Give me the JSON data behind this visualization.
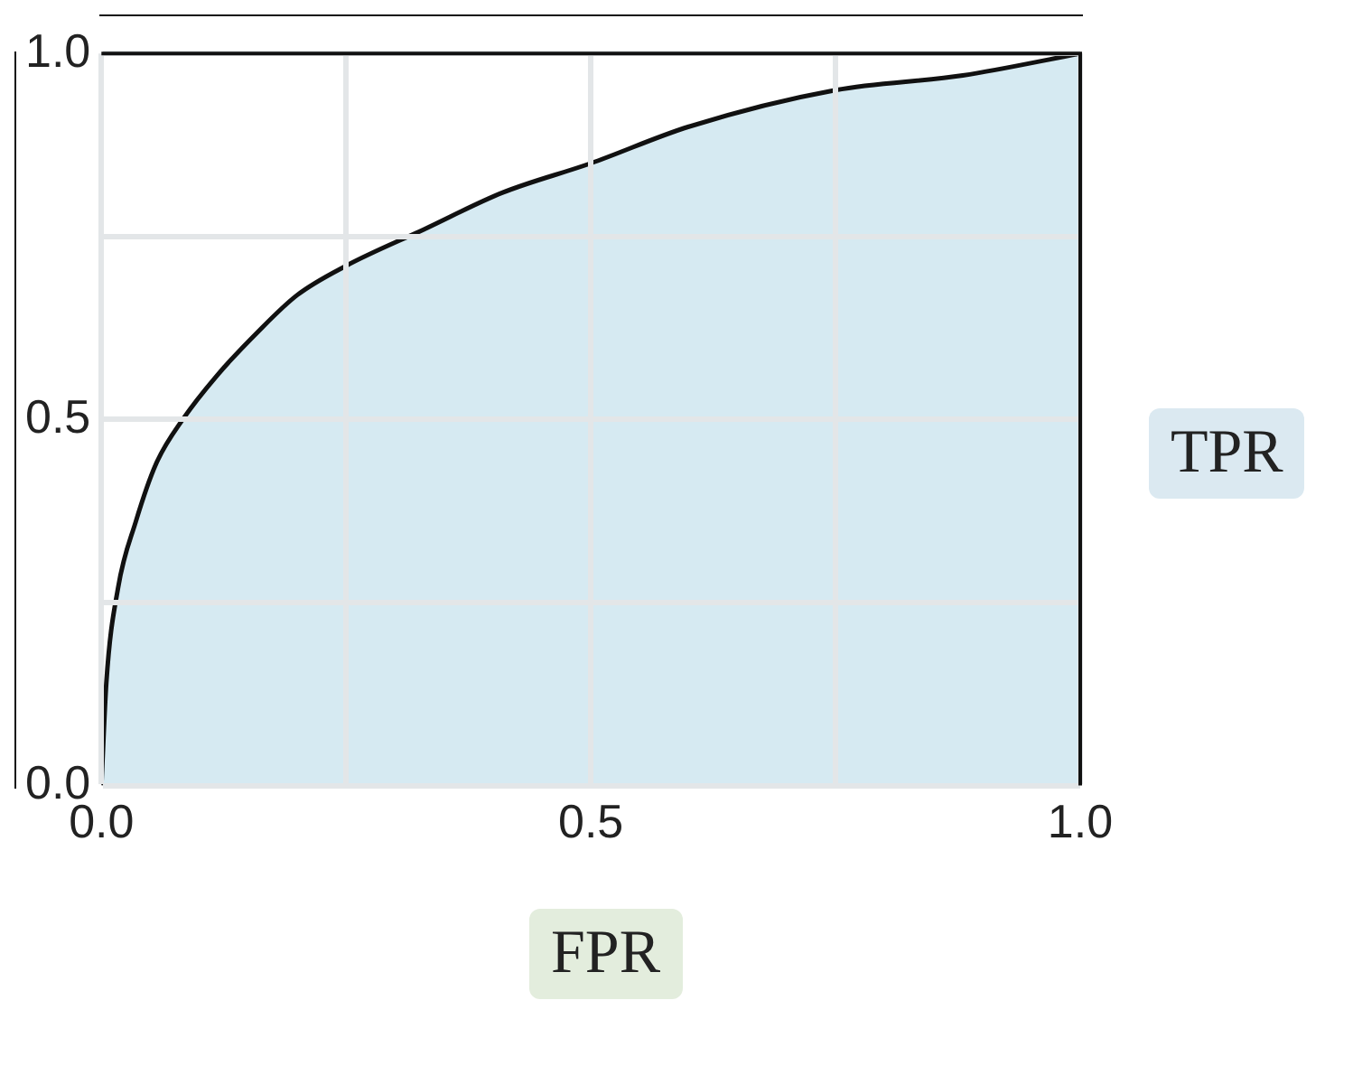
{
  "chart_data": {
    "type": "area",
    "xlabel": "FPR",
    "ylabel": "TPR",
    "x": [
      0,
      0.005,
      0.017,
      0.035,
      0.056,
      0.083,
      0.118,
      0.16,
      0.2,
      0.25,
      0.33,
      0.41,
      0.5,
      0.6,
      0.75,
      0.88,
      1
    ],
    "series": [
      {
        "color": "#d6eaf2",
        "values": [
          0,
          0.14,
          0.27,
          0.36,
          0.44,
          0.5,
          0.56,
          0.62,
          0.67,
          0.71,
          0.76,
          0.81,
          0.85,
          0.9,
          0.95,
          0.97,
          1
        ]
      }
    ],
    "xlim": [
      0,
      1
    ],
    "ylim": [
      0,
      1
    ],
    "xticks": [
      {
        "value": 0,
        "label": "0.0"
      },
      {
        "value": 0.25,
        "label": null
      },
      {
        "value": 0.5,
        "label": "0.5"
      },
      {
        "value": 0.75,
        "label": null
      },
      {
        "value": 1,
        "label": "1.0"
      }
    ],
    "yticks": [
      {
        "value": 0,
        "label": "0.0"
      },
      {
        "value": 0.25,
        "label": null
      },
      {
        "value": 0.5,
        "label": "0.5"
      },
      {
        "value": 0.75,
        "label": null
      },
      {
        "value": 1,
        "label": "1.0"
      }
    ],
    "grid": true,
    "legend": false,
    "marker": "none",
    "line_style": "solid"
  }
}
